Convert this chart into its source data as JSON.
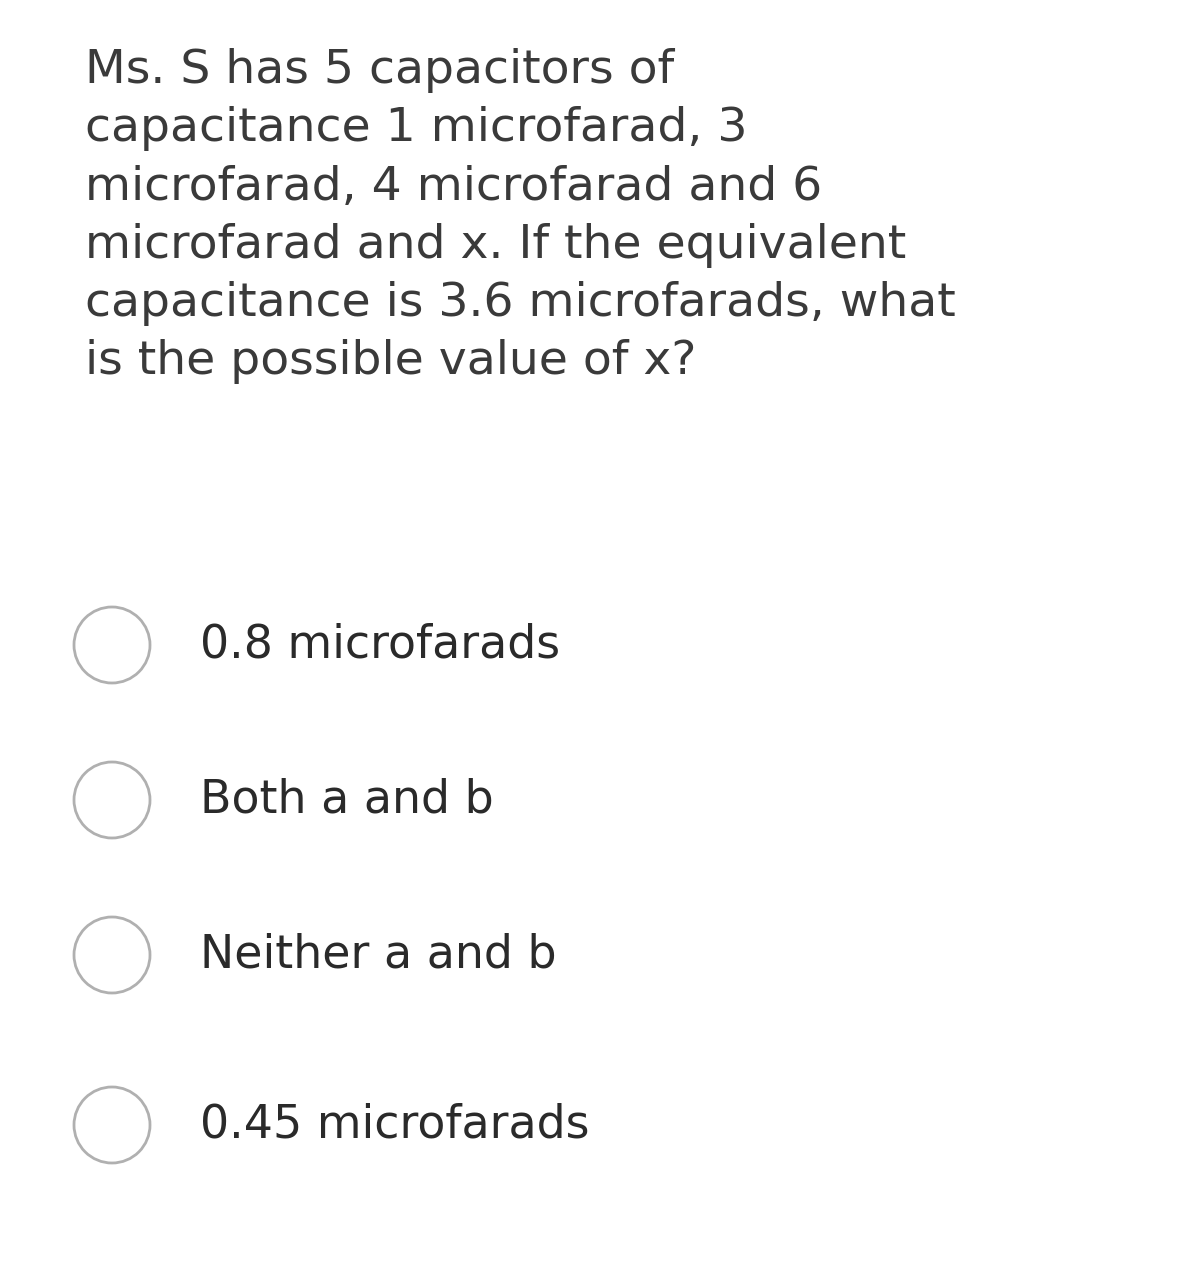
{
  "background_color": "#d8d8d8",
  "card_color": "#ffffff",
  "question_text": "Ms. S has 5 capacitors of\ncapacitance 1 microfarad, 3\nmicrofarad, 4 microfarad and 6\nmicrofarad and x. If the equivalent\ncapacitance is 3.6 microfarads, what\nis the possible value of x?",
  "options": [
    "0.8 microfarads",
    "Both a and b",
    "Neither a and b",
    "0.45 microfarads"
  ],
  "question_color": "#3a3a3a",
  "option_color": "#2a2a2a",
  "circle_edge_color": "#b0b0b0",
  "circle_face_color": "#ffffff",
  "question_fontsize": 34,
  "option_fontsize": 33,
  "fig_width": 12.0,
  "fig_height": 12.79
}
